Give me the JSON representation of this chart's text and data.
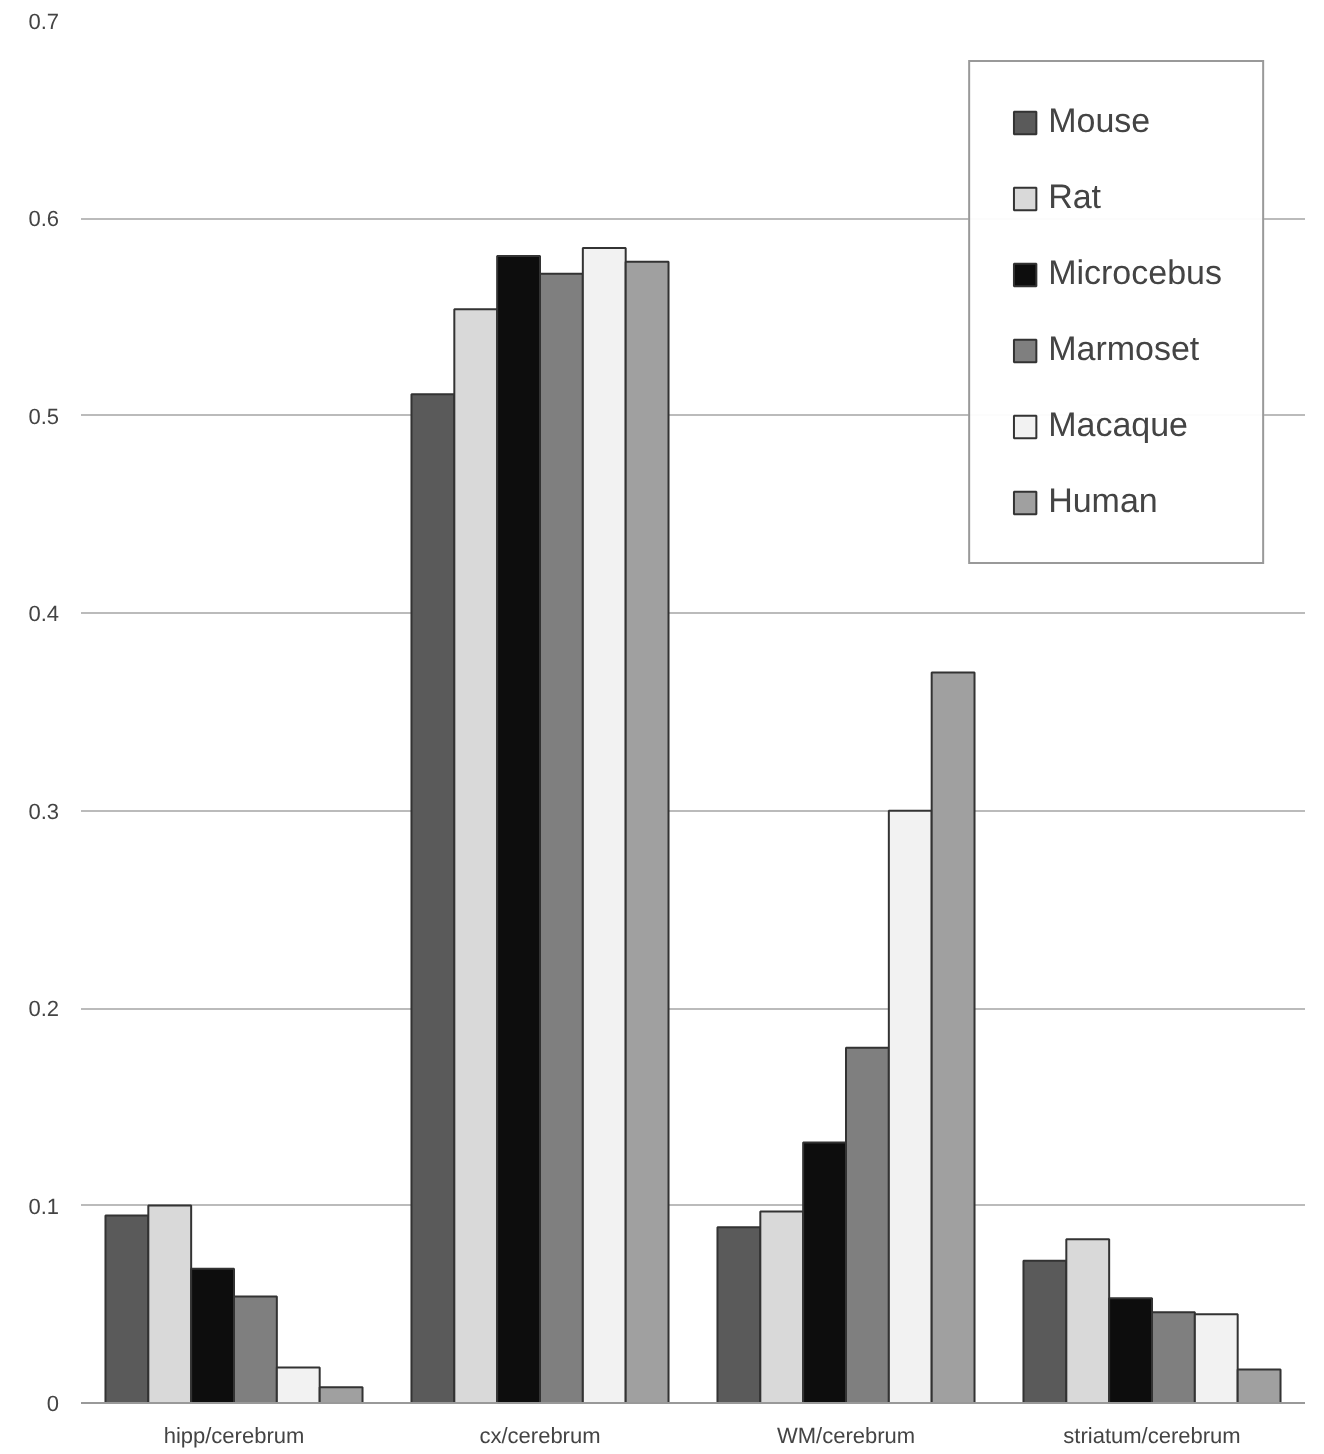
{
  "chart_data": {
    "type": "bar",
    "categories": [
      "hipp/cerebrum",
      "cx/cerebrum",
      "WM/cerebrum",
      "striatum/cerebrum"
    ],
    "series": [
      {
        "name": "Mouse",
        "color": "#5a5a5a",
        "values": [
          0.095,
          0.511,
          0.089,
          0.072
        ]
      },
      {
        "name": "Rat",
        "color": "#d9d9d9",
        "values": [
          0.1,
          0.554,
          0.097,
          0.083
        ]
      },
      {
        "name": "Microcebus",
        "color": "#0d0d0d",
        "values": [
          0.068,
          0.581,
          0.132,
          0.053
        ]
      },
      {
        "name": "Marmoset",
        "color": "#7f7f7f",
        "values": [
          0.054,
          0.572,
          0.18,
          0.046
        ]
      },
      {
        "name": "Macaque",
        "color": "#f2f2f2",
        "values": [
          0.018,
          0.585,
          0.3,
          0.045
        ]
      },
      {
        "name": "Human",
        "color": "#a0a0a0",
        "values": [
          0.008,
          0.578,
          0.37,
          0.017
        ]
      }
    ],
    "ylim": [
      0,
      0.7
    ],
    "yticks": [
      0,
      0.1,
      0.2,
      0.3,
      0.4,
      0.5,
      0.6,
      0.7
    ],
    "grid": "y",
    "legend": "top right"
  }
}
